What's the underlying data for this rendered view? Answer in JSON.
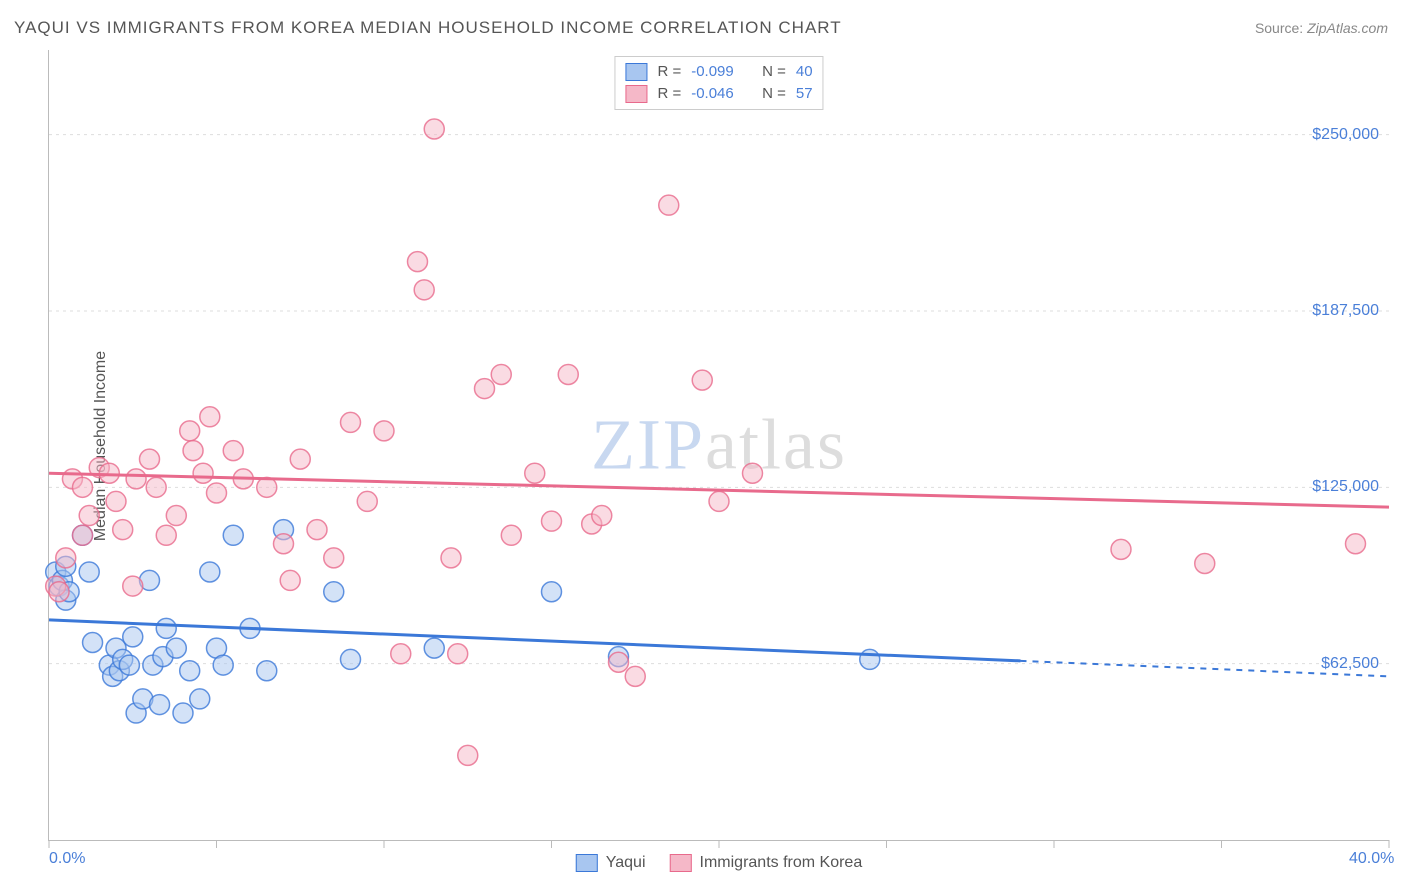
{
  "title": "YAQUI VS IMMIGRANTS FROM KOREA MEDIAN HOUSEHOLD INCOME CORRELATION CHART",
  "source_label": "Source:",
  "source_value": "ZipAtlas.com",
  "ylabel": "Median Household Income",
  "watermark": {
    "front": "ZIP",
    "back": "atlas"
  },
  "chart": {
    "type": "scatter",
    "background_color": "#ffffff",
    "grid_color": "#dddddd",
    "grid_dash": "3,4",
    "axis_color": "#bbbbbb",
    "x": {
      "min": 0,
      "max": 40,
      "unit": "%",
      "ticks": [
        0,
        5,
        10,
        15,
        20,
        25,
        30,
        35,
        40
      ],
      "label_ticks": [
        0,
        40
      ],
      "tick_format_suffix": ".0%"
    },
    "y": {
      "min": 0,
      "max": 280000,
      "gridlines": [
        62500,
        125000,
        187500,
        250000
      ],
      "label_ticks": [
        62500,
        125000,
        187500,
        250000
      ],
      "tick_format_prefix": "$"
    },
    "marker_radius": 10,
    "marker_opacity": 0.5,
    "series": [
      {
        "name": "Yaqui",
        "color_stroke": "#3b78d8",
        "color_fill": "#a8c6f0",
        "R": -0.099,
        "N": 40,
        "trend": {
          "y_at_xmin": 78000,
          "y_at_xmax": 58000,
          "solid_until_x": 29
        },
        "points": [
          [
            0.2,
            95000
          ],
          [
            0.3,
            90000
          ],
          [
            0.4,
            92000
          ],
          [
            0.5,
            85000
          ],
          [
            0.5,
            97000
          ],
          [
            0.6,
            88000
          ],
          [
            1.0,
            108000
          ],
          [
            1.2,
            95000
          ],
          [
            1.3,
            70000
          ],
          [
            1.8,
            62000
          ],
          [
            1.9,
            58000
          ],
          [
            2.0,
            68000
          ],
          [
            2.1,
            60000
          ],
          [
            2.2,
            64000
          ],
          [
            2.4,
            62000
          ],
          [
            2.5,
            72000
          ],
          [
            2.6,
            45000
          ],
          [
            2.8,
            50000
          ],
          [
            3.0,
            92000
          ],
          [
            3.1,
            62000
          ],
          [
            3.3,
            48000
          ],
          [
            3.4,
            65000
          ],
          [
            3.5,
            75000
          ],
          [
            3.8,
            68000
          ],
          [
            4.0,
            45000
          ],
          [
            4.2,
            60000
          ],
          [
            4.5,
            50000
          ],
          [
            4.8,
            95000
          ],
          [
            5.0,
            68000
          ],
          [
            5.2,
            62000
          ],
          [
            5.5,
            108000
          ],
          [
            6.0,
            75000
          ],
          [
            6.5,
            60000
          ],
          [
            7.0,
            110000
          ],
          [
            8.5,
            88000
          ],
          [
            9.0,
            64000
          ],
          [
            11.5,
            68000
          ],
          [
            15.0,
            88000
          ],
          [
            17.0,
            65000
          ],
          [
            24.5,
            64000
          ]
        ]
      },
      {
        "name": "Immigrants from Korea",
        "color_stroke": "#e86a8c",
        "color_fill": "#f5b8c8",
        "R": -0.046,
        "N": 57,
        "trend": {
          "y_at_xmin": 130000,
          "y_at_xmax": 118000,
          "solid_until_x": 40
        },
        "points": [
          [
            0.2,
            90000
          ],
          [
            0.3,
            88000
          ],
          [
            0.5,
            100000
          ],
          [
            0.7,
            128000
          ],
          [
            1.0,
            125000
          ],
          [
            1.0,
            108000
          ],
          [
            1.2,
            115000
          ],
          [
            1.5,
            132000
          ],
          [
            1.8,
            130000
          ],
          [
            2.0,
            120000
          ],
          [
            2.2,
            110000
          ],
          [
            2.5,
            90000
          ],
          [
            2.6,
            128000
          ],
          [
            3.0,
            135000
          ],
          [
            3.2,
            125000
          ],
          [
            3.5,
            108000
          ],
          [
            3.8,
            115000
          ],
          [
            4.2,
            145000
          ],
          [
            4.3,
            138000
          ],
          [
            4.8,
            150000
          ],
          [
            4.6,
            130000
          ],
          [
            5.0,
            123000
          ],
          [
            5.5,
            138000
          ],
          [
            5.8,
            128000
          ],
          [
            6.5,
            125000
          ],
          [
            7.0,
            105000
          ],
          [
            7.2,
            92000
          ],
          [
            7.5,
            135000
          ],
          [
            8.0,
            110000
          ],
          [
            8.5,
            100000
          ],
          [
            9.0,
            148000
          ],
          [
            9.5,
            120000
          ],
          [
            10.0,
            145000
          ],
          [
            10.5,
            66000
          ],
          [
            11.0,
            205000
          ],
          [
            11.2,
            195000
          ],
          [
            11.5,
            252000
          ],
          [
            12.0,
            100000
          ],
          [
            12.5,
            30000
          ],
          [
            12.2,
            66000
          ],
          [
            13.0,
            160000
          ],
          [
            13.5,
            165000
          ],
          [
            13.8,
            108000
          ],
          [
            14.5,
            130000
          ],
          [
            15.0,
            113000
          ],
          [
            15.5,
            165000
          ],
          [
            16.2,
            112000
          ],
          [
            16.5,
            115000
          ],
          [
            17.0,
            63000
          ],
          [
            17.5,
            58000
          ],
          [
            18.5,
            225000
          ],
          [
            19.5,
            163000
          ],
          [
            20.0,
            120000
          ],
          [
            21.0,
            130000
          ],
          [
            32.0,
            103000
          ],
          [
            34.5,
            98000
          ],
          [
            39.0,
            105000
          ]
        ]
      }
    ]
  },
  "legend_top": {
    "R_label": "R =",
    "N_label": "N ="
  },
  "legend_bottom_labels": [
    "Yaqui",
    "Immigrants from Korea"
  ],
  "colors": {
    "title_text": "#555555",
    "tick_text": "#4a7fd8",
    "source_text": "#888888"
  }
}
